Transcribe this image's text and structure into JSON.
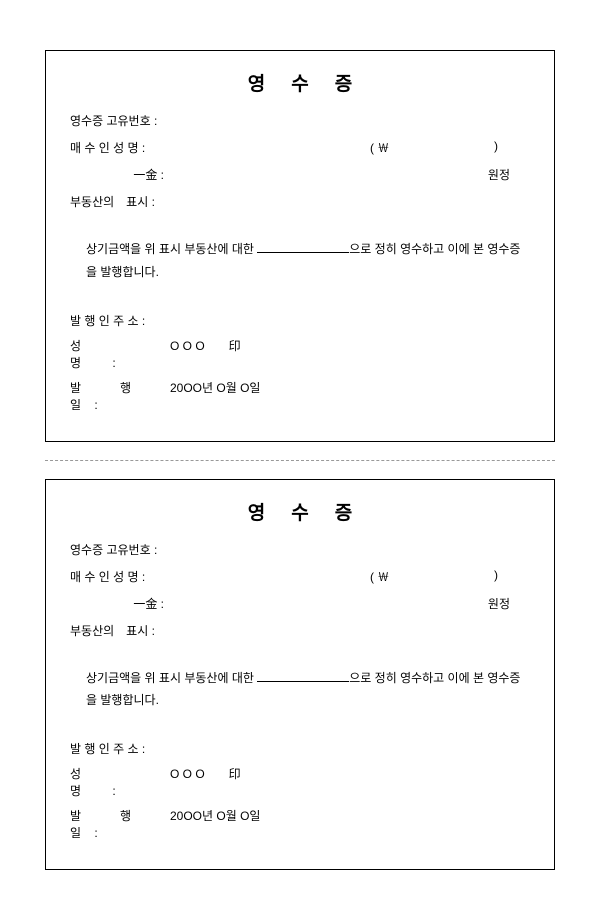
{
  "receipts": [
    {
      "title": "영수증",
      "unique_no_label": "영수증 고유번호 :",
      "buyer_label": "매 수 인  성 명 :",
      "won_open": "( ￦",
      "won_close": ")",
      "amount_label": "一金 :",
      "wonjeong": "원정",
      "property_label": "부동산의　표시 :",
      "statement_pre": "상기금액을 위 표시 부동산에 대한 ",
      "statement_post": "으로 정히 영수하고 이에 본 영수증을 발행합니다.",
      "issuer_addr_label": "발 행 인  주 소 :",
      "issuer_name_label": "성　　　명 :",
      "issuer_name_value": "O  O  O　　印",
      "issue_date_label": "발　　행　　일 :",
      "issue_date_value": "20OO년  O월  O일"
    },
    {
      "title": "영수증",
      "unique_no_label": "영수증 고유번호 :",
      "buyer_label": "매 수 인  성 명 :",
      "won_open": "( ￦",
      "won_close": ")",
      "amount_label": "一金 :",
      "wonjeong": "원정",
      "property_label": "부동산의　표시 :",
      "statement_pre": "상기금액을 위 표시 부동산에 대한 ",
      "statement_post": "으로 정히 영수하고 이에 본 영수증을 발행합니다.",
      "issuer_addr_label": "발 행 인  주 소 :",
      "issuer_name_label": "성　　　명 :",
      "issuer_name_value": "O  O  O　　印",
      "issue_date_label": "발　　행　　일 :",
      "issue_date_value": "20OO년  O월  O일"
    }
  ]
}
